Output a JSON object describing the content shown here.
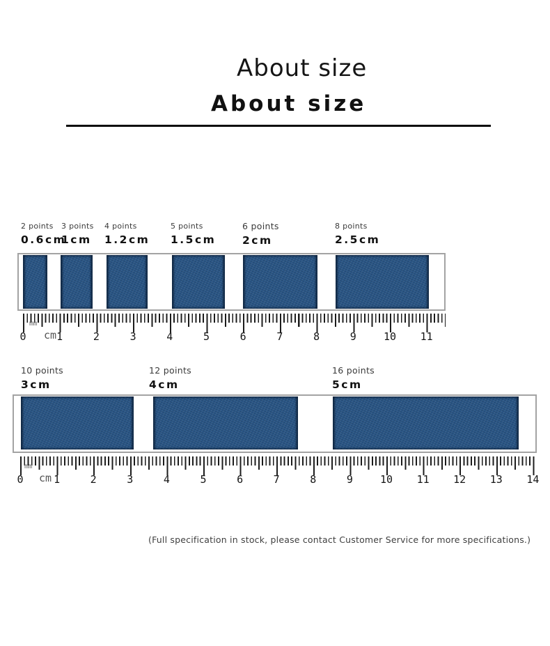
{
  "page": {
    "title_light": "About size",
    "title_bold": "About size",
    "footer": "(Full specification in stock, please contact Customer Service for more specifications.)"
  },
  "colors": {
    "ribbon_blue": "#2b5787",
    "strip_border": "#a3a3a3",
    "tick_black": "#1c1c1c"
  },
  "rows": [
    {
      "ribbons": [
        {
          "points": "2 points",
          "size": "0.6cm"
        },
        {
          "points": "3 points",
          "size": "1cm"
        },
        {
          "points": "4 points",
          "size": "1.2cm"
        },
        {
          "points": "5 points",
          "size": "1.5cm"
        },
        {
          "points": "6 points",
          "size": "2cm"
        },
        {
          "points": "8 points",
          "size": "2.5cm"
        }
      ],
      "ruler": {
        "unit_mm": "mm",
        "unit_cm": "cm",
        "numbers": [
          "0",
          "1",
          "2",
          "3",
          "4",
          "5",
          "6",
          "7",
          "8",
          "9",
          "10",
          "11"
        ]
      }
    },
    {
      "ribbons": [
        {
          "points": "10 points",
          "size": "3cm"
        },
        {
          "points": "12 points",
          "size": "4cm"
        },
        {
          "points": "16 points",
          "size": "5cm"
        }
      ],
      "ruler": {
        "unit_mm": "mm",
        "unit_cm": "cm",
        "numbers": [
          "0",
          "1",
          "2",
          "3",
          "4",
          "5",
          "6",
          "7",
          "8",
          "9",
          "10",
          "11",
          "12",
          "13",
          "14"
        ]
      }
    }
  ]
}
